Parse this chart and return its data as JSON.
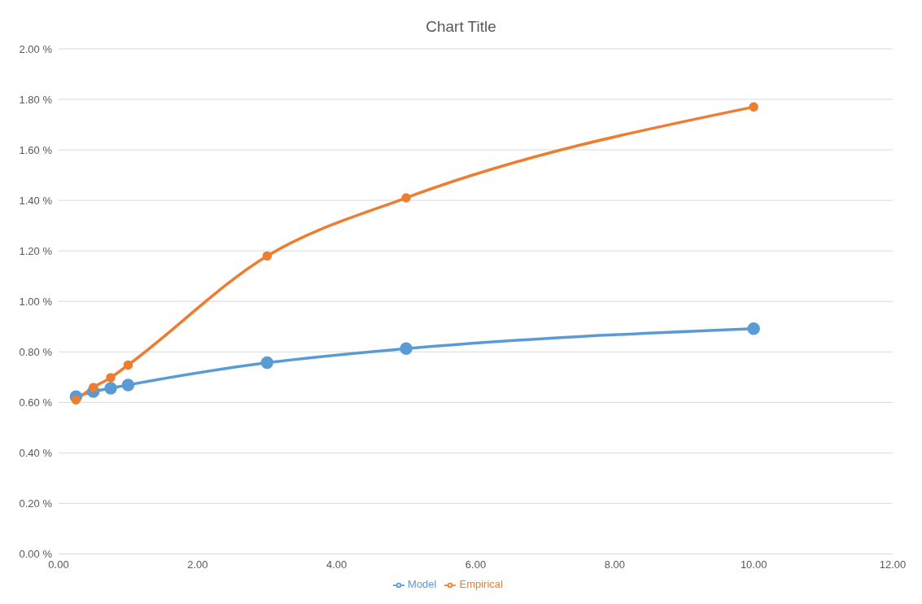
{
  "chart_data": {
    "type": "line",
    "title": "Chart Title",
    "x": [
      0.25,
      0.5,
      0.75,
      1,
      3,
      5,
      10
    ],
    "series": [
      {
        "name": "Model",
        "color": "#5b9bd5",
        "values": [
          0.623,
          0.643,
          0.656,
          0.669,
          0.757,
          0.813,
          0.892
        ]
      },
      {
        "name": "Empirical",
        "color": "#ed7d31",
        "values": [
          0.61,
          0.659,
          0.698,
          0.748,
          1.18,
          1.41,
          1.77
        ]
      }
    ],
    "xlim": [
      0,
      12
    ],
    "xticks": [
      {
        "value": 0,
        "label": "0.00"
      },
      {
        "value": 2,
        "label": "2.00"
      },
      {
        "value": 4,
        "label": "4.00"
      },
      {
        "value": 6,
        "label": "6.00"
      },
      {
        "value": 8,
        "label": "8.00"
      },
      {
        "value": 10,
        "label": "10.00"
      },
      {
        "value": 12,
        "label": "12.00"
      }
    ],
    "ylim": [
      0,
      2
    ],
    "yticks": [
      {
        "value": 0,
        "label": "0.00 %"
      },
      {
        "value": 0.2,
        "label": "0.20 %"
      },
      {
        "value": 0.4,
        "label": "0.40 %"
      },
      {
        "value": 0.6,
        "label": "0.60 %"
      },
      {
        "value": 0.8,
        "label": "0.80 %"
      },
      {
        "value": 1,
        "label": "1.00 %"
      },
      {
        "value": 1.2,
        "label": "1.20 %"
      },
      {
        "value": 1.4,
        "label": "1.40 %"
      },
      {
        "value": 1.6,
        "label": "1.60 %"
      },
      {
        "value": 1.8,
        "label": "1.80 %"
      },
      {
        "value": 2,
        "label": "2.00 %"
      }
    ],
    "grid": "y",
    "legend": "bottom",
    "marker": "circle",
    "line_style": "solid"
  }
}
